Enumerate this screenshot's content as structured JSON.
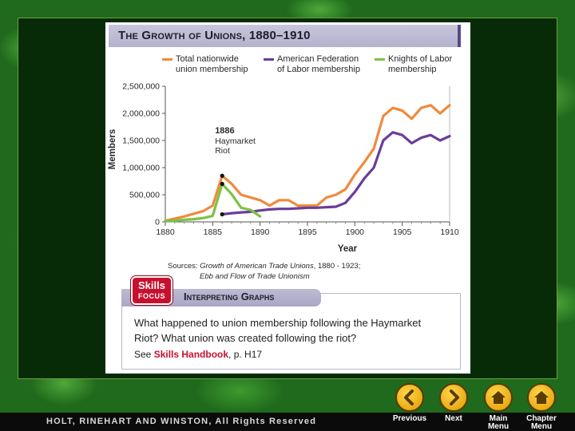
{
  "title": "The Growth of Unions, 1880–1910",
  "legend": [
    {
      "label_line1": "Total nationwide",
      "label_line2": "union membership",
      "color": "#f08a3c"
    },
    {
      "label_line1": "American Federation",
      "label_line2": "of Labor membership",
      "color": "#6a3d9a"
    },
    {
      "label_line1": "Knights of Labor",
      "label_line2": "membership",
      "color": "#7cc243"
    }
  ],
  "chart_data": {
    "type": "line",
    "title": "The Growth of Unions, 1880–1910",
    "xlabel": "Year",
    "ylabel": "Members",
    "xlim": [
      1880,
      1910
    ],
    "ylim": [
      0,
      2500000
    ],
    "x_ticks": [
      1880,
      1885,
      1890,
      1895,
      1900,
      1905,
      1910
    ],
    "y_ticks": [
      0,
      500000,
      1000000,
      1500000,
      2000000,
      2500000
    ],
    "y_tick_labels": [
      "0",
      "500,000",
      "1,000,000",
      "1,500,000",
      "2,000,000",
      "2,500,000"
    ],
    "series": [
      {
        "name": "Total nationwide union membership",
        "color": "#f08a3c",
        "x": [
          1880,
          1881,
          1882,
          1883,
          1884,
          1885,
          1886,
          1887,
          1888,
          1889,
          1890,
          1891,
          1892,
          1893,
          1894,
          1895,
          1896,
          1897,
          1898,
          1899,
          1900,
          1901,
          1902,
          1903,
          1904,
          1905,
          1906,
          1907,
          1908,
          1909,
          1910
        ],
        "y": [
          20000,
          60000,
          100000,
          150000,
          200000,
          300000,
          850000,
          700000,
          500000,
          450000,
          400000,
          300000,
          400000,
          400000,
          300000,
          300000,
          300000,
          450000,
          500000,
          600000,
          870000,
          1100000,
          1350000,
          1950000,
          2100000,
          2050000,
          1900000,
          2100000,
          2150000,
          2000000,
          2150000
        ]
      },
      {
        "name": "American Federation of Labor membership",
        "color": "#6a3d9a",
        "x": [
          1886,
          1887,
          1888,
          1889,
          1890,
          1891,
          1892,
          1893,
          1894,
          1895,
          1896,
          1897,
          1898,
          1899,
          1900,
          1901,
          1902,
          1903,
          1904,
          1905,
          1906,
          1907,
          1908,
          1909,
          1910
        ],
        "y": [
          140000,
          160000,
          175000,
          185000,
          210000,
          230000,
          240000,
          240000,
          250000,
          260000,
          260000,
          270000,
          280000,
          350000,
          550000,
          800000,
          1000000,
          1500000,
          1650000,
          1600000,
          1450000,
          1550000,
          1600000,
          1500000,
          1580000
        ]
      },
      {
        "name": "Knights of Labor membership",
        "color": "#7cc243",
        "x": [
          1880,
          1881,
          1882,
          1883,
          1884,
          1885,
          1886,
          1887,
          1888,
          1889,
          1890
        ],
        "y": [
          20000,
          20000,
          40000,
          50000,
          70000,
          110000,
          700000,
          510000,
          260000,
          220000,
          100000
        ]
      }
    ],
    "annotations": [
      {
        "year": "1886",
        "line1": "Haymarket",
        "line2": "Riot"
      }
    ],
    "markers": [
      {
        "x": 1886,
        "y": 850000
      },
      {
        "x": 1886,
        "y": 700000
      },
      {
        "x": 1886,
        "y": 140000
      }
    ]
  },
  "sources": {
    "prefix": "Sources: ",
    "book1": "Growth of American Trade Unions",
    "book1_years": ", 1880 - 1923;",
    "book2": "Ebb and Flow of Trade Unionism"
  },
  "skills": {
    "badge_line1": "Skills",
    "badge_line2": "FOCUS",
    "header": "Interpreting Graphs",
    "question": "What happened to union membership following the Haymarket Riot? What union was created following the riot?",
    "see_prefix": "See ",
    "see_link": "Skills Handbook",
    "see_suffix": ", p. H17"
  },
  "footer": {
    "publisher": "HOLT, RINEHART AND WINSTON, All Rights Reserved"
  },
  "nav": {
    "previous": "Previous",
    "next": "Next",
    "main_menu_1": "Main",
    "main_menu_2": "Menu",
    "chapter_menu_1": "Chapter",
    "chapter_menu_2": "Menu"
  }
}
